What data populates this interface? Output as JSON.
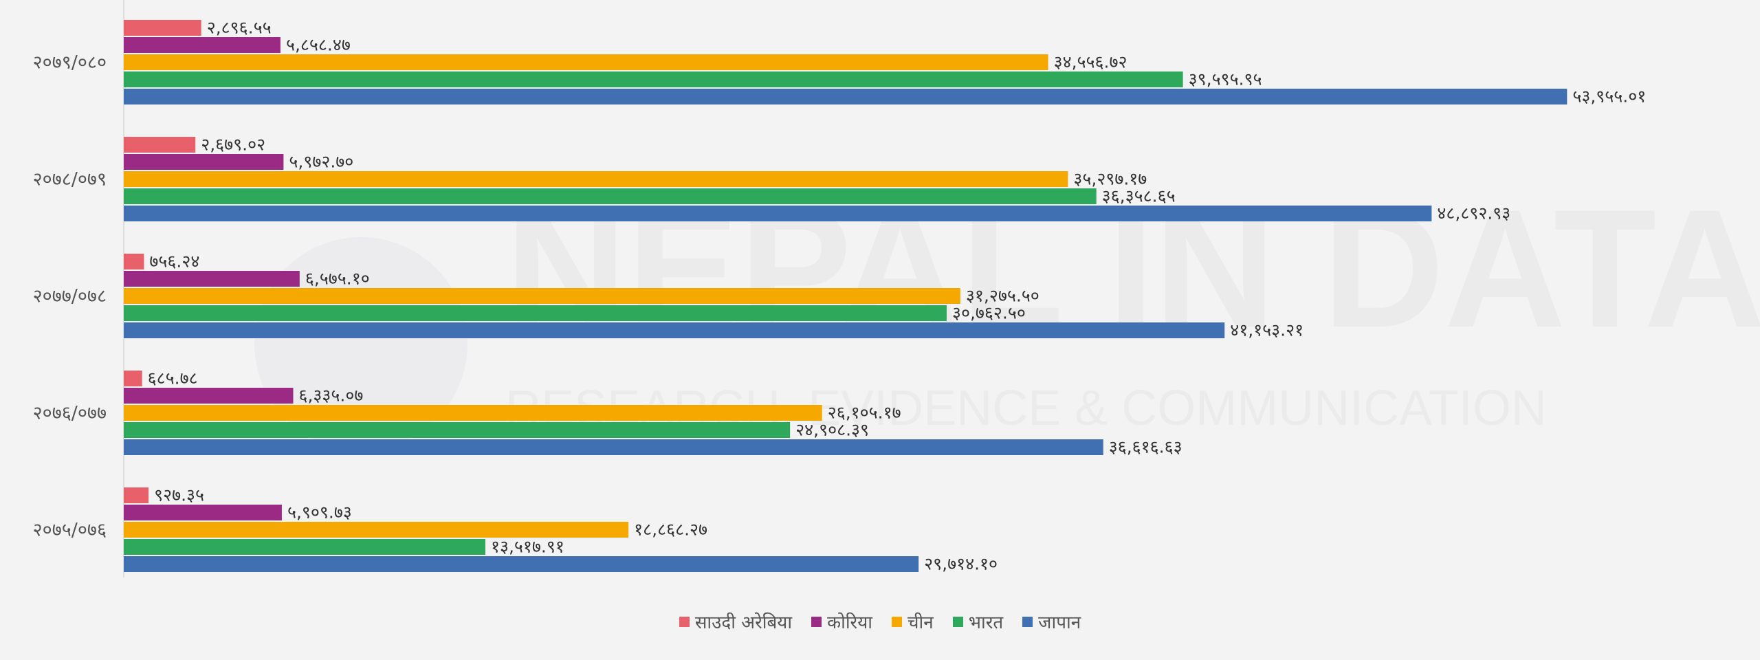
{
  "watermark": {
    "title": "NEPAL IN DATA",
    "subtitle": "RESEARCH, EVIDENCE & COMMUNICATION"
  },
  "chart_data": {
    "type": "bar",
    "orientation": "horizontal",
    "categories": [
      "२०७९/०८०",
      "२०७८/०७९",
      "२०७७/०७८",
      "२०७६/०७७",
      "२०७५/०७६"
    ],
    "series": [
      {
        "name": "साउदी अरेबिया",
        "color": "#e8606a",
        "values": [
          2896.55,
          2679.02,
          756.24,
          685.78,
          927.35
        ],
        "labels": [
          "२,८९६.५५",
          "२,६७९.०२",
          "७५६.२४",
          "६८५.७८",
          "९२७.३५"
        ]
      },
      {
        "name": "कोरिया",
        "color": "#9b2a85",
        "values": [
          5858.47,
          5972.7,
          6575.1,
          6335.07,
          5909.73
        ],
        "labels": [
          "५,८५८.४७",
          "५,९७२.७०",
          "६,५७५.१०",
          "६,३३५.०७",
          "५,९०९.७३"
        ]
      },
      {
        "name": "चीन",
        "color": "#f5a800",
        "values": [
          34556.72,
          35297.17,
          31275.5,
          26105.17,
          18868.27
        ],
        "labels": [
          "३४,५५६.७२",
          "३५,२९७.१७",
          "३१,२७५.५०",
          "२६,१०५.१७",
          "१८,८६८.२७"
        ]
      },
      {
        "name": "भारत",
        "color": "#2ea85a",
        "values": [
          39595.95,
          36358.65,
          30762.5,
          24908.39,
          13517.91
        ],
        "labels": [
          "३९,५९५.९५",
          "३६,३५८.६५",
          "३०,७६२.५०",
          "२४,९०८.३९",
          "१३,५१७.९१"
        ]
      },
      {
        "name": "जापान",
        "color": "#4170b2",
        "values": [
          53955.01,
          48892.93,
          41153.21,
          36616.63,
          29714.1
        ],
        "labels": [
          "५३,९५५.०१",
          "४८,८९२.९३",
          "४१,१५३.२१",
          "३६,६१६.६३",
          "२९,७१४.१०"
        ]
      }
    ],
    "xlim": [
      0,
      60000
    ],
    "grid": false,
    "legend_position": "bottom"
  }
}
